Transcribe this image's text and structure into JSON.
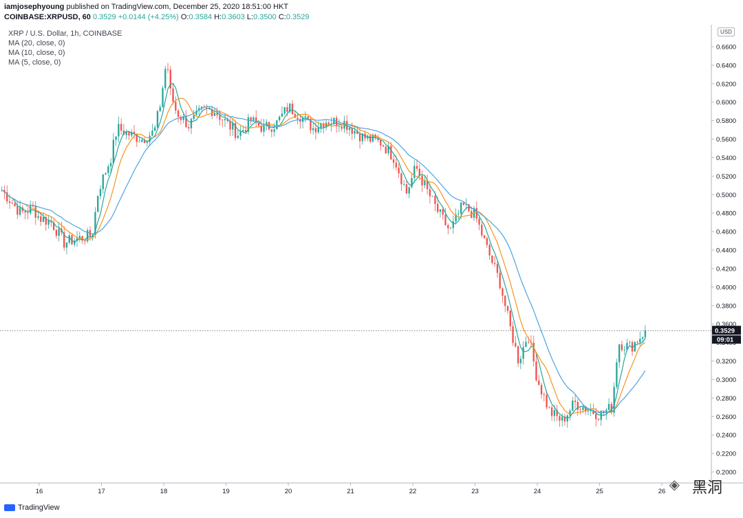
{
  "header": {
    "author": "iamjosephyoung",
    "published": " published on TradingView.com, December 25, 2020 18:51:00 HKT",
    "symbol": "COINBASE:XRPUSD, 60",
    "last": "0.3529",
    "change": "+0.0144 (+4.25%)",
    "o_label": "O:",
    "o": "0.3584",
    "h_label": "H:",
    "h": "0.3603",
    "l_label": "L:",
    "l": "0.3500",
    "c_label": "C:",
    "c": "0.3529"
  },
  "legend": {
    "title": "XRP / U.S. Dollar, 1h, COINBASE",
    "ma20": "MA (20, close, 0)",
    "ma10": "MA (10, close, 0)",
    "ma5": "MA (5, close, 0)"
  },
  "price_axis": {
    "currency": "USD",
    "ticks": [
      "0.6600",
      "0.6400",
      "0.6200",
      "0.6000",
      "0.5800",
      "0.5600",
      "0.5400",
      "0.5200",
      "0.5000",
      "0.4800",
      "0.4600",
      "0.4400",
      "0.4200",
      "0.4000",
      "0.3800",
      "0.3600",
      "0.3400",
      "0.3200",
      "0.3000",
      "0.2800",
      "0.2600",
      "0.2400",
      "0.2200",
      "0.2000"
    ],
    "last_price_label": "0.3529",
    "countdown_label": "09:01"
  },
  "time_axis": {
    "ticks": [
      "16",
      "17",
      "18",
      "19",
      "20",
      "21",
      "22",
      "23",
      "24",
      "25",
      "26"
    ]
  },
  "footer": {
    "brand": "TradingView"
  },
  "watermark": {
    "icon": "wechat-icon",
    "text": "黑洞"
  },
  "colors": {
    "up": "#26a69a",
    "down": "#ef5350",
    "ma5": "#26a69a",
    "ma10": "#f7931a",
    "ma20": "#4aa3df",
    "last_line": "#555555"
  },
  "chart_data": {
    "type": "candlestick",
    "title": "XRP / U.S. Dollar, 1h, COINBASE",
    "x_range": [
      15.4,
      25.9
    ],
    "ylim": [
      0.19,
      0.67
    ],
    "last_price": 0.3529,
    "waypoints": [
      [
        15.4,
        0.505
      ],
      [
        15.7,
        0.48
      ],
      [
        15.9,
        0.485
      ],
      [
        16.0,
        0.475
      ],
      [
        16.2,
        0.47
      ],
      [
        16.4,
        0.448
      ],
      [
        16.6,
        0.452
      ],
      [
        16.85,
        0.456
      ],
      [
        16.95,
        0.505
      ],
      [
        17.15,
        0.54
      ],
      [
        17.25,
        0.572
      ],
      [
        17.45,
        0.565
      ],
      [
        17.65,
        0.56
      ],
      [
        17.85,
        0.568
      ],
      [
        17.95,
        0.6
      ],
      [
        18.05,
        0.648
      ],
      [
        18.1,
        0.612
      ],
      [
        18.2,
        0.59
      ],
      [
        18.4,
        0.575
      ],
      [
        18.6,
        0.59
      ],
      [
        18.8,
        0.592
      ],
      [
        19.0,
        0.578
      ],
      [
        19.2,
        0.565
      ],
      [
        19.4,
        0.58
      ],
      [
        19.6,
        0.572
      ],
      [
        19.8,
        0.576
      ],
      [
        20.0,
        0.595
      ],
      [
        20.2,
        0.585
      ],
      [
        20.4,
        0.572
      ],
      [
        20.6,
        0.58
      ],
      [
        20.9,
        0.578
      ],
      [
        21.2,
        0.562
      ],
      [
        21.5,
        0.556
      ],
      [
        21.7,
        0.54
      ],
      [
        21.9,
        0.502
      ],
      [
        22.05,
        0.53
      ],
      [
        22.2,
        0.508
      ],
      [
        22.4,
        0.482
      ],
      [
        22.6,
        0.46
      ],
      [
        22.8,
        0.488
      ],
      [
        23.0,
        0.478
      ],
      [
        23.2,
        0.44
      ],
      [
        23.4,
        0.405
      ],
      [
        23.55,
        0.36
      ],
      [
        23.7,
        0.32
      ],
      [
        23.85,
        0.35
      ],
      [
        24.0,
        0.3
      ],
      [
        24.2,
        0.265
      ],
      [
        24.4,
        0.255
      ],
      [
        24.6,
        0.275
      ],
      [
        24.8,
        0.268
      ],
      [
        25.0,
        0.262
      ],
      [
        25.2,
        0.27
      ],
      [
        25.3,
        0.34
      ],
      [
        25.5,
        0.335
      ],
      [
        25.7,
        0.35
      ],
      [
        25.75,
        0.3529
      ]
    ],
    "ma_series": [
      {
        "name": "MA (5, close, 0)",
        "period": 5
      },
      {
        "name": "MA (10, close, 0)",
        "period": 10
      },
      {
        "name": "MA (20, close, 0)",
        "period": 20
      }
    ]
  }
}
